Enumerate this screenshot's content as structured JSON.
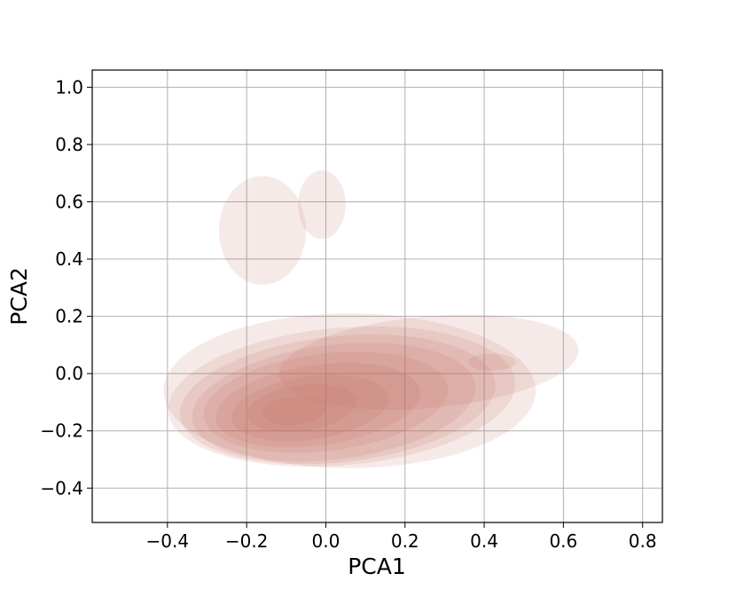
{
  "chart_data": {
    "type": "kde-contour",
    "title": "",
    "xlabel": "PCA1",
    "ylabel": "PCA2",
    "xlim": [
      -0.59,
      0.85
    ],
    "ylim": [
      -0.52,
      1.06
    ],
    "x_ticks": [
      {
        "value": -0.4,
        "label": "−0.4"
      },
      {
        "value": -0.2,
        "label": "−0.2"
      },
      {
        "value": 0.0,
        "label": "0.0"
      },
      {
        "value": 0.2,
        "label": "0.2"
      },
      {
        "value": 0.4,
        "label": "0.4"
      },
      {
        "value": 0.6,
        "label": "0.6"
      },
      {
        "value": 0.8,
        "label": "0.8"
      }
    ],
    "y_ticks": [
      {
        "value": -0.4,
        "label": "−0.4"
      },
      {
        "value": -0.2,
        "label": "−0.2"
      },
      {
        "value": 0.0,
        "label": "0.0"
      },
      {
        "value": 0.2,
        "label": "0.2"
      },
      {
        "value": 0.4,
        "label": "0.4"
      },
      {
        "value": 0.6,
        "label": "0.6"
      },
      {
        "value": 0.8,
        "label": "0.8"
      },
      {
        "value": 1.0,
        "label": "1.0"
      }
    ],
    "grid": true,
    "fill_color": "#c0675a",
    "level_opacity": 0.14,
    "series": [
      {
        "label": "",
        "center": [
          -0.16,
          0.5
        ],
        "radii": [
          0.11,
          0.19
        ],
        "rotation_deg": 0
      },
      {
        "label": "",
        "center": [
          -0.01,
          0.59
        ],
        "radii": [
          0.06,
          0.12
        ],
        "rotation_deg": 0
      },
      {
        "label": "",
        "center": [
          0.06,
          -0.06
        ],
        "radii": [
          0.47,
          0.27
        ],
        "rotation_deg": 0
      },
      {
        "label": "",
        "center": [
          0.26,
          0.04
        ],
        "radii": [
          0.38,
          0.16
        ],
        "rotation_deg": 5
      },
      {
        "label": "",
        "center": [
          0.04,
          -0.08
        ],
        "radii": [
          0.44,
          0.24
        ],
        "rotation_deg": 5
      },
      {
        "label": "",
        "center": [
          0.03,
          -0.09
        ],
        "radii": [
          0.4,
          0.22
        ],
        "rotation_deg": 6
      },
      {
        "label": "",
        "center": [
          0.02,
          -0.1
        ],
        "radii": [
          0.36,
          0.2
        ],
        "rotation_deg": 7
      },
      {
        "label": "",
        "center": [
          0.0,
          -0.1
        ],
        "radii": [
          0.31,
          0.17
        ],
        "rotation_deg": 7
      },
      {
        "label": "",
        "center": [
          -0.02,
          -0.11
        ],
        "radii": [
          0.26,
          0.14
        ],
        "rotation_deg": 8
      },
      {
        "label": "",
        "center": [
          -0.04,
          -0.12
        ],
        "radii": [
          0.2,
          0.11
        ],
        "rotation_deg": 8
      },
      {
        "label": "",
        "center": [
          -0.06,
          -0.12
        ],
        "radii": [
          0.14,
          0.08
        ],
        "rotation_deg": 8
      },
      {
        "label": "",
        "center": [
          -0.08,
          -0.13
        ],
        "radii": [
          0.08,
          0.05
        ],
        "rotation_deg": 5
      },
      {
        "label": "",
        "center": [
          0.42,
          0.04
        ],
        "radii": [
          0.06,
          0.03
        ],
        "rotation_deg": 0
      }
    ]
  }
}
